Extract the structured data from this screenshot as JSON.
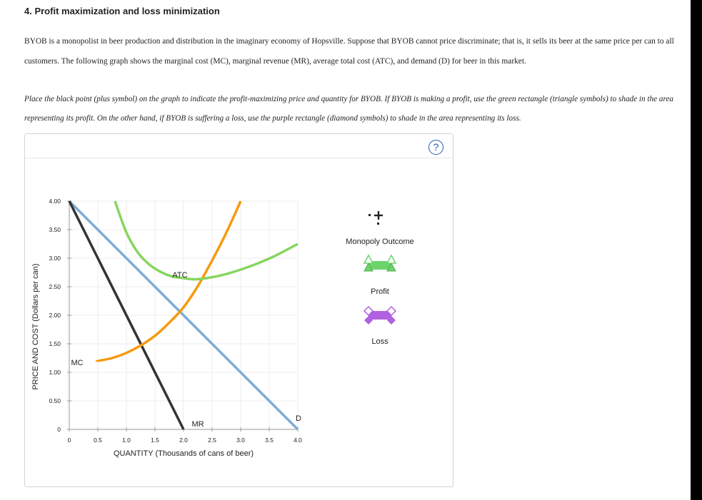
{
  "question": {
    "title": "4. Profit maximization and loss minimization",
    "intro": "BYOB is a monopolist in beer production and distribution in the imaginary economy of Hopsville. Suppose that BYOB cannot price discriminate; that is, it sells its beer at the same price per can to all customers. The following graph shows the marginal cost (MC), marginal revenue (MR), average total cost (ATC), and demand (D) for beer in this market.",
    "instructions": "Place the black point (plus symbol) on the graph to indicate the profit-maximizing price and quantity for BYOB. If BYOB is making a profit, use the green rectangle (triangle symbols) to shade in the area representing its profit. On the other hand, if BYOB is suffering a loss, use the purple rectangle (diamond symbols) to shade in the area representing its loss."
  },
  "help_label": "?",
  "palette": {
    "title": "",
    "items": [
      {
        "label": "Monopoly Outcome",
        "icon": "plus-point-icon"
      },
      {
        "label": "Profit",
        "icon": "green-triangle-rectangle-icon",
        "color": "#6dd36b"
      },
      {
        "label": "Loss",
        "icon": "purple-diamond-rectangle-icon",
        "color": "#b061e0"
      }
    ]
  },
  "chart_data": {
    "type": "line",
    "xlabel": "QUANTITY (Thousands of cans of beer)",
    "ylabel": "PRICE AND COST (Dollars per can)",
    "xlim": [
      0,
      4.0
    ],
    "ylim": [
      0,
      4.0
    ],
    "x_ticks": [
      "0",
      "0.5",
      "1.0",
      "1.5",
      "2.0",
      "2.5",
      "3.0",
      "3.5",
      "4.0"
    ],
    "y_ticks": [
      "0",
      "0.50",
      "1.00",
      "1.50",
      "2.00",
      "2.50",
      "3.00",
      "3.50",
      "4.00"
    ],
    "series": [
      {
        "name": "D",
        "color": "#7eacd6",
        "x": [
          0,
          4.0
        ],
        "y": [
          4.0,
          0
        ]
      },
      {
        "name": "MR",
        "color": "#333333",
        "x": [
          0,
          2.0
        ],
        "y": [
          4.0,
          0
        ]
      },
      {
        "name": "MC",
        "color": "#f7990f",
        "x": [
          0.5,
          0.75,
          1.0,
          1.25,
          1.5,
          1.75,
          2.0,
          2.25,
          2.5,
          2.75,
          3.0
        ],
        "y": [
          1.2,
          1.25,
          1.34,
          1.47,
          1.64,
          1.87,
          2.14,
          2.51,
          2.96,
          3.45,
          4.0
        ]
      },
      {
        "name": "ATC",
        "color": "#87d55f",
        "x": [
          0.8,
          1.0,
          1.2,
          1.4,
          1.6,
          1.8,
          2.0,
          2.2,
          2.4,
          2.7,
          3.0,
          3.3,
          3.6,
          4.0
        ],
        "y": [
          4.0,
          3.45,
          3.1,
          2.89,
          2.76,
          2.68,
          2.65,
          2.63,
          2.65,
          2.71,
          2.8,
          2.91,
          3.04,
          3.25
        ]
      }
    ]
  }
}
